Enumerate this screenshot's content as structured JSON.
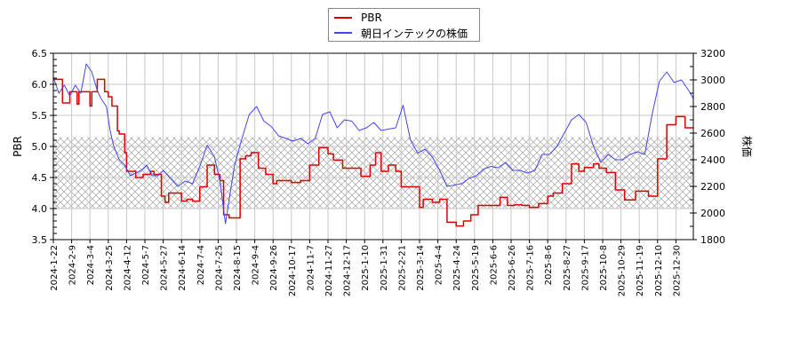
{
  "chart_data": {
    "type": "line",
    "title": "",
    "legend": {
      "position": "top-center",
      "entries": [
        {
          "label": "PBR",
          "color": "#dd0000"
        },
        {
          "label": "朝日インテックの株価",
          "color": "#4444ee"
        }
      ]
    },
    "xlabel": "",
    "ylabel_left": "PBR",
    "ylabel_right": "株価",
    "ylim_left": [
      3.5,
      6.5
    ],
    "ylim_right": [
      1800,
      3200
    ],
    "yticks_left": [
      "3.5",
      "4.0",
      "4.5",
      "5.0",
      "5.5",
      "6.0",
      "6.5"
    ],
    "yticks_right": [
      "1800",
      "2000",
      "2200",
      "2400",
      "2600",
      "2800",
      "3000",
      "3200"
    ],
    "x_tick_labels": [
      "2024-1-22",
      "2024-2-9",
      "2024-3-4",
      "2024-3-25",
      "2024-4-12",
      "2024-5-7",
      "2024-5-27",
      "2024-6-14",
      "2024-7-4",
      "2024-7-25",
      "2024-8-15",
      "2024-9-4",
      "2024-9-26",
      "2024-10-17",
      "2024-11-7",
      "2024-11-27",
      "2024-12-17",
      "2025-1-10",
      "2025-1-31",
      "2025-2-21",
      "2025-3-14",
      "2025-4-4",
      "2025-4-24",
      "2025-5-19",
      "2025-6-6",
      "2025-6-26",
      "2025-7-16",
      "2025-8-6",
      "2025-8-27",
      "2025-9-17",
      "2025-10-8",
      "2025-10-29",
      "2025-11-19",
      "2025-12-10",
      "2025-12-30"
    ],
    "grid": true,
    "shaded_band_pbr": [
      4.0,
      5.15
    ],
    "series": [
      {
        "name": "PBR",
        "axis": "left",
        "color": "#dd0000",
        "x_tick_index": [
          0,
          0.4,
          0.5,
          0.9,
          1.3,
          1.4,
          2.0,
          2.1,
          2.4,
          2.8,
          3.0,
          3.2,
          3.5,
          3.6,
          3.9,
          4.0,
          4.5,
          4.9,
          5.3,
          5.5,
          5.9,
          6.1,
          6.3,
          6.7,
          7.0,
          7.3,
          7.6,
          8.0,
          8.4,
          8.8,
          9.1,
          9.3,
          9.6,
          9.8,
          10.2,
          10.5,
          10.8,
          11.2,
          11.6,
          12.0,
          12.2,
          12.6,
          13.0,
          13.5,
          14.0,
          14.5,
          15.0,
          15.3,
          15.8,
          16.3,
          16.8,
          17.3,
          17.6,
          17.9,
          18.3,
          18.7,
          19.0,
          19.4,
          20.0,
          20.2,
          20.7,
          21.1,
          21.5,
          22.0,
          22.4,
          22.8,
          23.2,
          23.6,
          24.0,
          24.4,
          24.8,
          25.2,
          25.6,
          26.0,
          26.5,
          27.0,
          27.3,
          27.8,
          28.3,
          28.7,
          29.0,
          29.5,
          29.8,
          30.2,
          30.7,
          31.2,
          31.8,
          32.2,
          32.5,
          33.0,
          33.5,
          34.0,
          34.5,
          35.0
        ],
        "values": [
          6.08,
          6.08,
          5.7,
          5.88,
          5.68,
          5.88,
          5.65,
          5.88,
          6.08,
          5.88,
          5.8,
          5.65,
          5.25,
          5.2,
          4.9,
          4.6,
          4.5,
          4.55,
          4.6,
          4.55,
          4.2,
          4.1,
          4.25,
          4.25,
          4.12,
          4.15,
          4.12,
          4.35,
          4.7,
          4.55,
          4.45,
          3.9,
          3.85,
          3.85,
          4.8,
          4.85,
          4.9,
          4.65,
          4.55,
          4.4,
          4.45,
          4.45,
          4.42,
          4.45,
          4.7,
          4.98,
          4.88,
          4.78,
          4.65,
          4.65,
          4.52,
          4.7,
          4.9,
          4.6,
          4.7,
          4.6,
          4.35,
          4.35,
          4.02,
          4.15,
          4.1,
          4.15,
          3.78,
          3.72,
          3.8,
          3.9,
          4.05,
          4.05,
          4.05,
          4.18,
          4.05,
          4.06,
          4.05,
          4.02,
          4.08,
          4.2,
          4.25,
          4.4,
          4.72,
          4.6,
          4.66,
          4.72,
          4.65,
          4.58,
          4.3,
          4.14,
          4.28,
          4.28,
          4.2,
          4.8,
          5.35,
          5.48,
          5.3,
          5.25
        ]
      },
      {
        "name": "朝日インテックの株価",
        "axis": "right",
        "color": "#4444ee",
        "x_tick_index": [
          0,
          0.3,
          0.6,
          0.9,
          1.2,
          1.5,
          1.8,
          2.1,
          2.4,
          2.6,
          2.9,
          3.1,
          3.3,
          3.6,
          3.9,
          4.2,
          4.5,
          4.8,
          5.1,
          5.4,
          5.7,
          6.0,
          6.4,
          6.8,
          7.2,
          7.6,
          8.0,
          8.4,
          8.8,
          9.1,
          9.4,
          9.6,
          9.9,
          10.3,
          10.7,
          11.1,
          11.5,
          11.9,
          12.3,
          12.7,
          13.1,
          13.5,
          13.9,
          14.3,
          14.7,
          15.1,
          15.5,
          15.9,
          16.3,
          16.7,
          17.1,
          17.5,
          17.9,
          18.3,
          18.7,
          19.1,
          19.5,
          19.9,
          20.3,
          20.7,
          21.1,
          21.5,
          21.9,
          22.3,
          22.7,
          23.1,
          23.5,
          23.9,
          24.3,
          24.7,
          25.1,
          25.5,
          25.9,
          26.3,
          26.7,
          27.1,
          27.5,
          27.9,
          28.3,
          28.7,
          29.1,
          29.5,
          29.9,
          30.3,
          30.7,
          31.1,
          31.5,
          31.9,
          32.3,
          32.7,
          33.1,
          33.5,
          33.9,
          34.3,
          34.7,
          35.0
        ],
        "values": [
          3020,
          2900,
          2960,
          2880,
          2960,
          2900,
          3120,
          3060,
          2920,
          2860,
          2800,
          2620,
          2500,
          2400,
          2360,
          2280,
          2300,
          2320,
          2360,
          2280,
          2280,
          2320,
          2260,
          2200,
          2240,
          2220,
          2350,
          2510,
          2420,
          2240,
          1920,
          2100,
          2360,
          2560,
          2740,
          2800,
          2690,
          2650,
          2580,
          2560,
          2540,
          2560,
          2520,
          2560,
          2740,
          2760,
          2640,
          2700,
          2690,
          2620,
          2640,
          2680,
          2620,
          2630,
          2640,
          2810,
          2550,
          2450,
          2480,
          2420,
          2320,
          2200,
          2210,
          2220,
          2260,
          2280,
          2330,
          2350,
          2340,
          2380,
          2320,
          2320,
          2300,
          2320,
          2440,
          2440,
          2500,
          2600,
          2700,
          2740,
          2680,
          2500,
          2380,
          2440,
          2400,
          2400,
          2440,
          2460,
          2440,
          2740,
          2990,
          3060,
          2980,
          3000,
          2920,
          2860
        ]
      }
    ]
  }
}
